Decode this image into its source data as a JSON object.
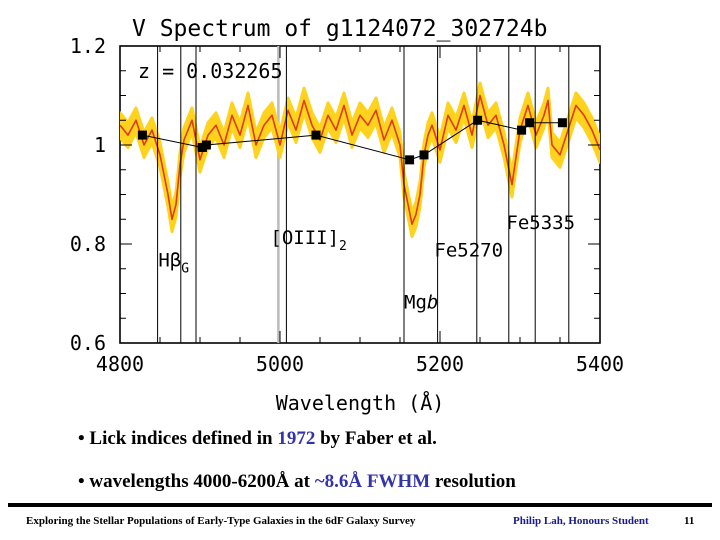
{
  "chart_data": {
    "type": "line",
    "title": "V Spectrum of g1124072_302724b",
    "annotation_z": "z = 0.032265",
    "xlabel": "Wavelength (Å)",
    "ylabel": "",
    "xlim": [
      4800,
      5400
    ],
    "ylim": [
      0.6,
      1.2
    ],
    "x_ticks": [
      "4800",
      "5000",
      "5200",
      "5400"
    ],
    "y_ticks": [
      "0.6",
      "0.8",
      "1",
      "1.2"
    ],
    "series": [
      {
        "x": [
          4800,
          4810,
          4820,
          4830,
          4840,
          4850,
          4860,
          4865,
          4870,
          4875,
          4880,
          4890,
          4900,
          4910,
          4920,
          4930,
          4940,
          4950,
          4960,
          4970,
          4980,
          4990,
          5000,
          5010,
          5020,
          5030,
          5040,
          5050,
          5060,
          5070,
          5080,
          5090,
          5100,
          5110,
          5120,
          5130,
          5140,
          5150,
          5155,
          5160,
          5165,
          5170,
          5175,
          5180,
          5185,
          5190,
          5200,
          5210,
          5220,
          5230,
          5240,
          5250,
          5260,
          5270,
          5280,
          5285,
          5290,
          5300,
          5310,
          5320,
          5330,
          5335,
          5340,
          5350,
          5360,
          5370,
          5380,
          5390,
          5400
        ],
        "y": [
          1.04,
          1.02,
          1.05,
          1.0,
          1.03,
          0.98,
          0.9,
          0.85,
          0.88,
          0.96,
          1.01,
          1.05,
          0.97,
          1.02,
          1.04,
          1.0,
          1.06,
          1.02,
          1.08,
          1.0,
          1.04,
          1.06,
          1.0,
          1.07,
          1.03,
          1.09,
          1.04,
          1.01,
          1.06,
          1.03,
          1.08,
          1.02,
          1.06,
          1.04,
          1.07,
          1.01,
          1.05,
          1.0,
          0.92,
          0.88,
          0.84,
          0.86,
          0.9,
          0.98,
          1.02,
          1.04,
          0.99,
          1.06,
          1.03,
          1.08,
          1.02,
          1.1,
          1.04,
          1.06,
          1.0,
          0.96,
          0.92,
          1.03,
          1.08,
          1.02,
          1.06,
          1.09,
          1.0,
          0.98,
          1.03,
          1.08,
          1.06,
          1.03,
          0.99
        ]
      }
    ],
    "continuum": {
      "x": [
        4828,
        4903,
        4908,
        5045,
        5162,
        5180,
        5247,
        5302,
        5312,
        5353
      ],
      "y": [
        1.02,
        0.995,
        1.0,
        1.02,
        0.97,
        0.98,
        1.05,
        1.03,
        1.045,
        1.045
      ]
    },
    "index_lines": [
      4847,
      4876,
      4895,
      5008,
      5155,
      5197,
      5246,
      5286,
      5319,
      5361
    ],
    "gray_line": 4998,
    "index_labels": [
      {
        "text": "Hβ_G",
        "x": 4848,
        "y": 0.755
      },
      {
        "text": "[OIII]_2",
        "x": 4988,
        "y": 0.8
      },
      {
        "text": "Mgb",
        "x": 5155,
        "y": 0.67
      },
      {
        "text": "Fe5270",
        "x": 5193,
        "y": 0.775
      },
      {
        "text": "Fe5335",
        "x": 5283,
        "y": 0.83
      }
    ]
  },
  "bullets": {
    "b1": {
      "pre": "• Lick indices defined in ",
      "hl": "1972",
      "post": " by Faber et al."
    },
    "b2": {
      "pre": "• wavelengths 4000-6200Å at ",
      "hl": "~8.6Å FWHM",
      "post": " resolution"
    }
  },
  "footer": {
    "title": "Exploring the Stellar Populations of Early-Type Galaxies in the 6dF Galaxy Survey",
    "author": "Philip Lah, Honours Student",
    "page": "11"
  },
  "colors": {
    "band": "#ffd21e",
    "spectrum": "#e03a10",
    "highlight": "#3333aa"
  }
}
